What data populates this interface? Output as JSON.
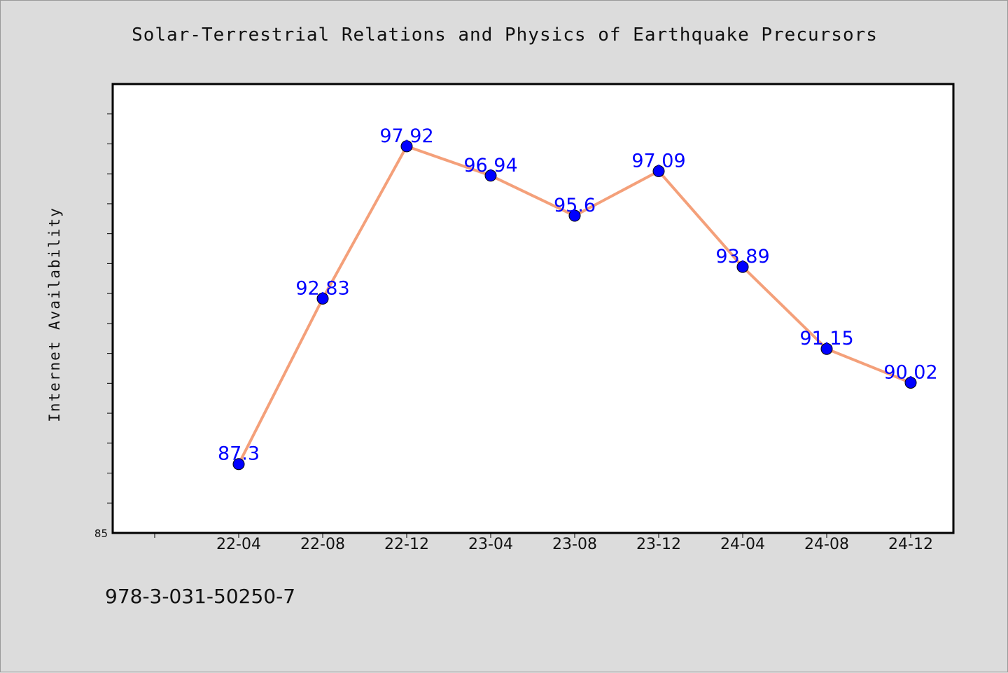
{
  "chart_data": {
    "type": "line",
    "title": "Solar-Terrestrial Relations and Physics of Earthquake Precursors",
    "xlabel": "",
    "ylabel": "Internet Availability",
    "categories": [
      "22-04",
      "22-08",
      "22-12",
      "23-04",
      "23-08",
      "23-12",
      "24-04",
      "24-08",
      "24-12"
    ],
    "series": [
      {
        "values": [
          87.3,
          92.83,
          97.92,
          96.94,
          95.6,
          97.09,
          93.89,
          91.15,
          90.02
        ],
        "labels": [
          "87.3",
          "92.83",
          "97.92",
          "96.94",
          "95.6",
          "97.09",
          "93.89",
          "91.15",
          "90.02"
        ]
      }
    ],
    "ylim": [
      85,
      100
    ],
    "y_min_label": "85",
    "grid": false,
    "line_color": "#f4a07a",
    "marker_color": "#0000ff",
    "label_color": "#0000ff"
  },
  "footer": {
    "code": "978-3-031-50250-7"
  }
}
